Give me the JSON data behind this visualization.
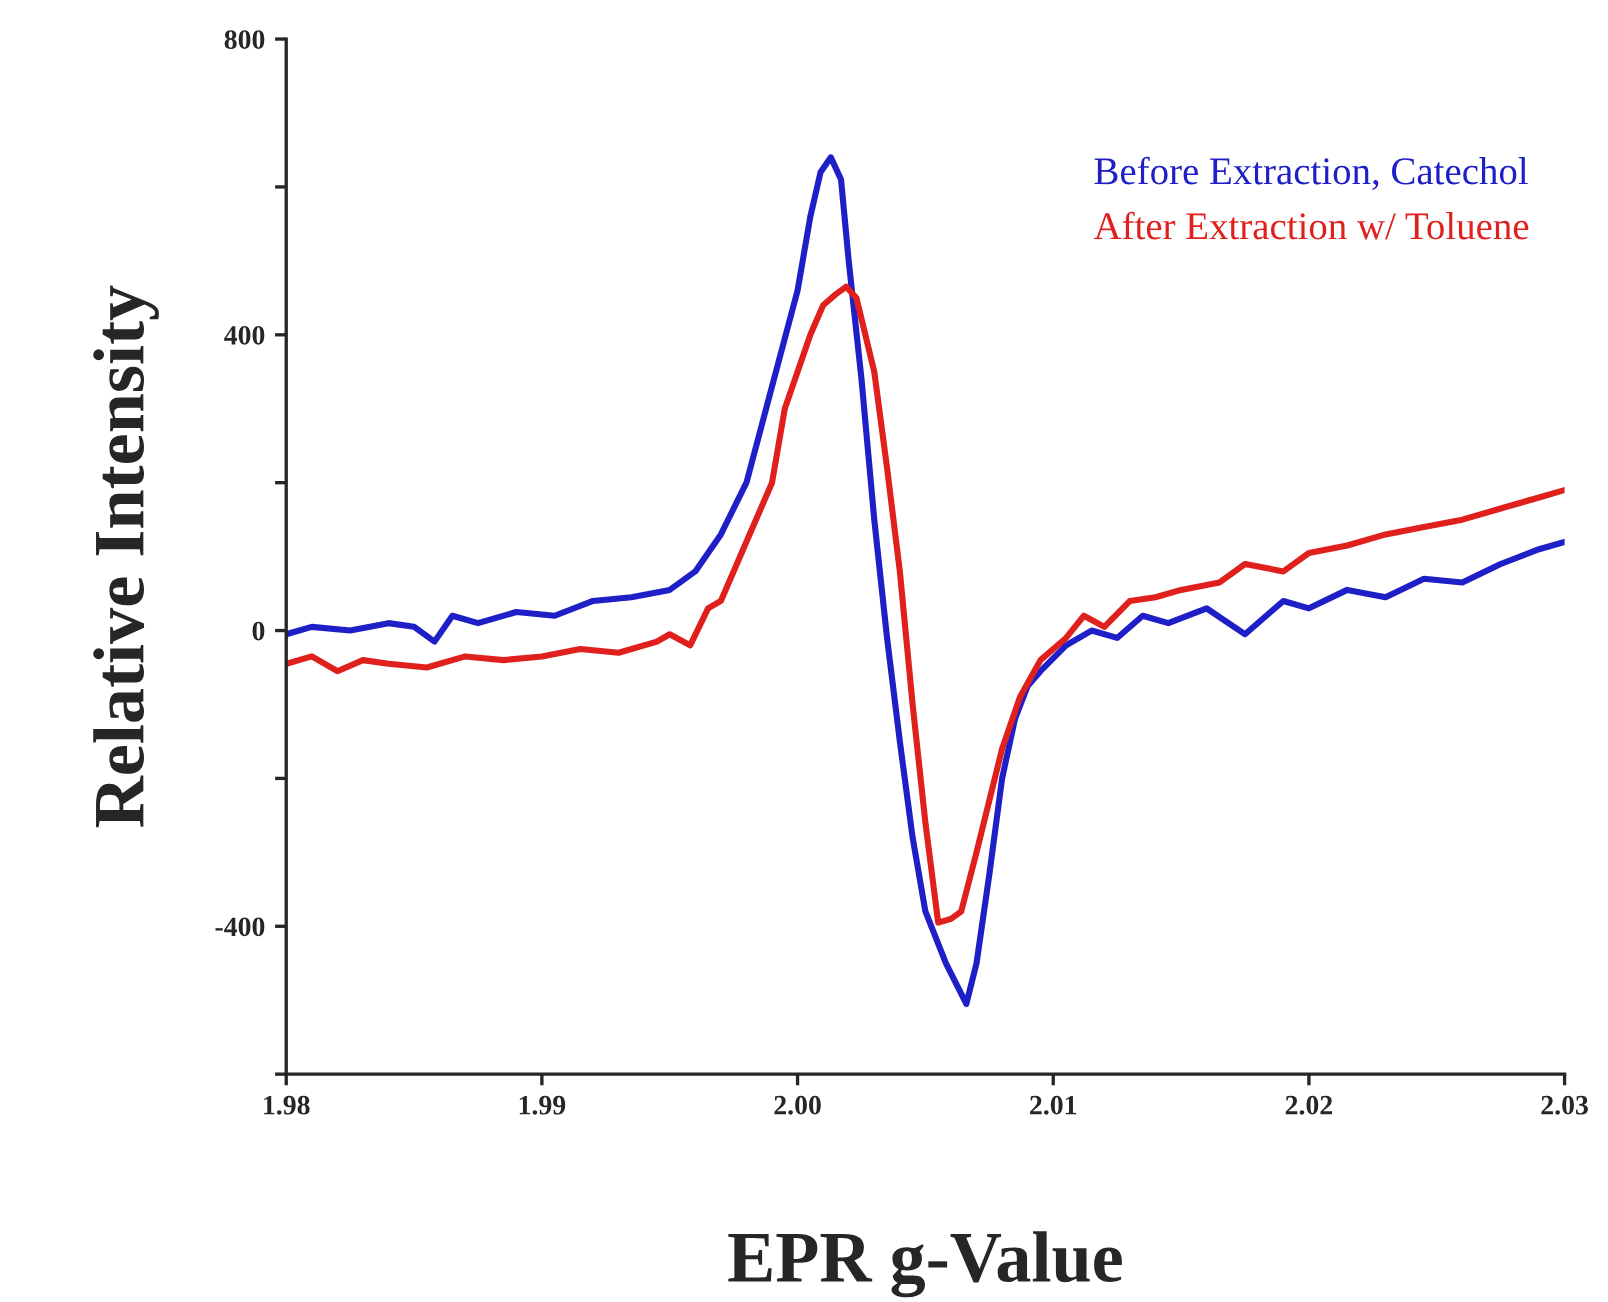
{
  "chart_data": {
    "type": "line",
    "xlabel": "EPR g-Value",
    "ylabel": "Relative Intensity",
    "xlim": [
      1.98,
      2.03
    ],
    "ylim": [
      -600,
      800
    ],
    "xticks": [
      1.98,
      1.99,
      {
        "value": 2.0,
        "label": "2.00"
      },
      2.01,
      2.02,
      2.03
    ],
    "yticks": [
      {
        "value": -600,
        "label": null
      },
      -400,
      {
        "value": -200,
        "label": null
      },
      0,
      {
        "value": 200,
        "label": null
      },
      400,
      {
        "value": 600,
        "label": null
      },
      800
    ],
    "legend": "top right",
    "grid": false,
    "line_style": "solid",
    "marker": "none",
    "series": [
      {
        "name": "Before Extraction, Catechol",
        "color": "#1f1fc8",
        "x": [
          1.98,
          1.981,
          1.9825,
          1.984,
          1.985,
          1.9858,
          1.9865,
          1.9875,
          1.989,
          1.9905,
          1.992,
          1.9935,
          1.995,
          1.996,
          1.997,
          1.998,
          1.999,
          2.0,
          2.0005,
          2.0009,
          2.0013,
          2.0017,
          2.002,
          2.0025,
          2.003,
          2.0035,
          2.004,
          2.0045,
          2.005,
          2.0058,
          2.0066,
          2.007,
          2.0075,
          2.008,
          2.0085,
          2.009,
          2.0095,
          2.0105,
          2.0115,
          2.0125,
          2.0135,
          2.0145,
          2.016,
          2.0175,
          2.019,
          2.02,
          2.0215,
          2.023,
          2.0245,
          2.026,
          2.0275,
          2.029,
          2.03
        ],
        "values": [
          -5,
          5,
          0,
          10,
          5,
          -15,
          20,
          10,
          25,
          20,
          40,
          45,
          55,
          80,
          130,
          200,
          330,
          460,
          560,
          620,
          640,
          610,
          500,
          340,
          150,
          -10,
          -150,
          -280,
          -380,
          -450,
          -505,
          -450,
          -330,
          -200,
          -120,
          -75,
          -55,
          -20,
          0,
          -10,
          20,
          10,
          30,
          -5,
          40,
          30,
          55,
          45,
          70,
          65,
          90,
          110,
          120
        ]
      },
      {
        "name": "After Extraction w/ Toluene",
        "color": "#e0201c",
        "x": [
          1.98,
          1.981,
          1.982,
          1.983,
          1.984,
          1.9855,
          1.987,
          1.9885,
          1.99,
          1.9915,
          1.993,
          1.9945,
          1.995,
          1.9958,
          1.9965,
          1.997,
          1.998,
          1.999,
          1.9995,
          2.0005,
          2.001,
          2.0015,
          2.0019,
          2.0023,
          2.003,
          2.0035,
          2.004,
          2.0045,
          2.005,
          2.0055,
          2.006,
          2.0064,
          2.007,
          2.0075,
          2.008,
          2.0087,
          2.0095,
          2.0105,
          2.0112,
          2.012,
          2.013,
          2.014,
          2.015,
          2.0165,
          2.0175,
          2.019,
          2.02,
          2.0215,
          2.023,
          2.0245,
          2.026,
          2.0275,
          2.029,
          2.03
        ],
        "values": [
          -45,
          -35,
          -55,
          -40,
          -45,
          -50,
          -35,
          -40,
          -35,
          -25,
          -30,
          -15,
          -5,
          -20,
          30,
          40,
          120,
          200,
          300,
          400,
          440,
          455,
          465,
          450,
          350,
          220,
          80,
          -100,
          -260,
          -395,
          -390,
          -380,
          -300,
          -230,
          -160,
          -90,
          -40,
          -10,
          20,
          5,
          40,
          45,
          55,
          65,
          90,
          80,
          105,
          115,
          130,
          140,
          150,
          165,
          180,
          190
        ]
      }
    ]
  }
}
